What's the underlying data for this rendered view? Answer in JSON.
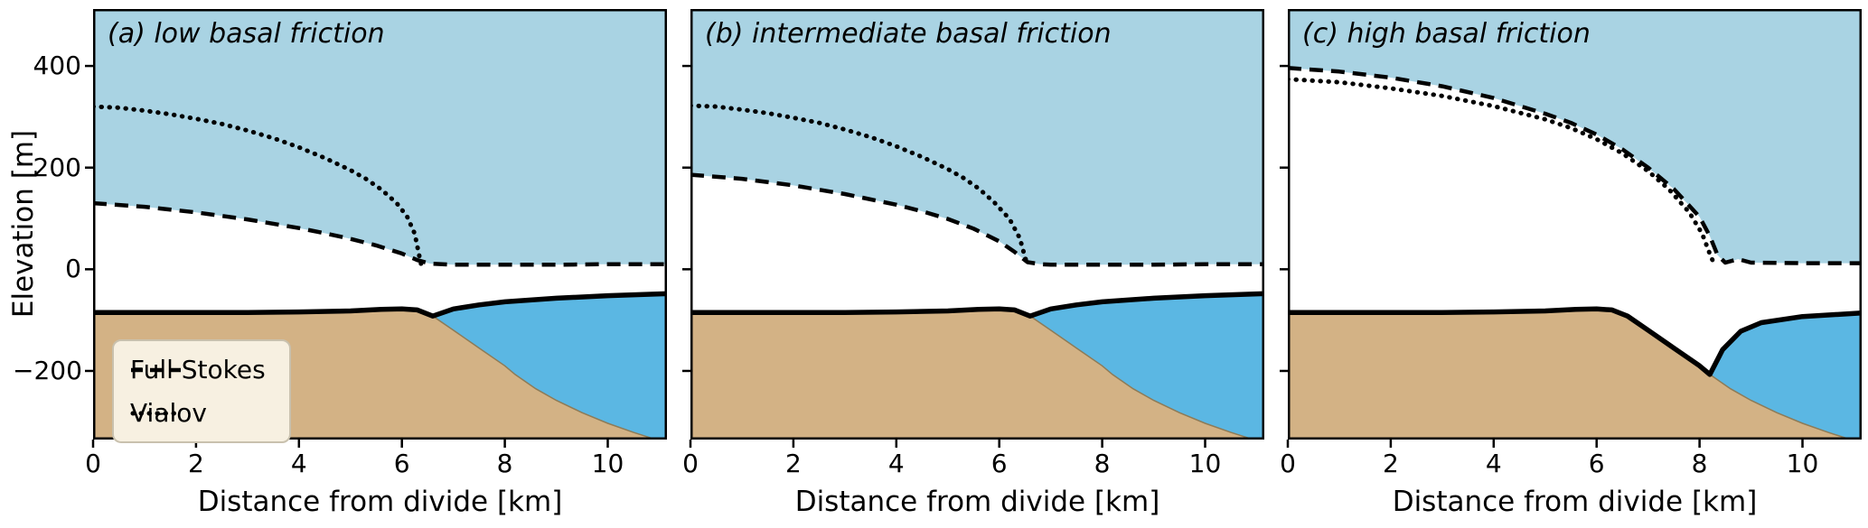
{
  "figure": {
    "ylabel": "Elevation [m]",
    "xlabel": "Distance from divide [km]",
    "x_ticks": [
      "0",
      "2",
      "4",
      "6",
      "8",
      "10"
    ],
    "x_tick_values": [
      0,
      2,
      4,
      6,
      8,
      10
    ],
    "y_ticks": [
      "400",
      "200",
      "0",
      "−200"
    ],
    "y_tick_values": [
      400,
      200,
      0,
      -200
    ],
    "colors": {
      "sky": "#a9d3e3",
      "water": "#5bb7e3",
      "bedrock": "#d3b285",
      "ice": "#ffffff",
      "line": "#000000",
      "legend_bg": "#f7f0e1"
    },
    "legend": {
      "position": "lower left of panel a",
      "entries": [
        {
          "label": "Full Stokes",
          "style": "dashed"
        },
        {
          "label": "Vialov",
          "style": "dotted"
        }
      ]
    }
  },
  "chart_data": [
    {
      "type": "area",
      "panel": "a",
      "title": "(a) low basal friction",
      "xlabel": "Distance from divide [km]",
      "ylabel": "Elevation [m]",
      "xlim": [
        0,
        11.15
      ],
      "ylim": [
        -335,
        512
      ],
      "grid": false,
      "grounding_line_x": 6.6,
      "series": [
        {
          "name": "Full Stokes surface",
          "style": "dashed",
          "points": [
            [
              0,
              130
            ],
            [
              1,
              123
            ],
            [
              2,
              112
            ],
            [
              3,
              98
            ],
            [
              4,
              81
            ],
            [
              4.5,
              71
            ],
            [
              5,
              60
            ],
            [
              5.5,
              47
            ],
            [
              6,
              31
            ],
            [
              6.3,
              18
            ],
            [
              6.55,
              11
            ],
            [
              7,
              9
            ],
            [
              8,
              9
            ],
            [
              9,
              9
            ],
            [
              10,
              10
            ],
            [
              11.15,
              10
            ]
          ]
        },
        {
          "name": "Vialov surface",
          "style": "dotted",
          "points": [
            [
              0,
              320
            ],
            [
              0.5,
              318
            ],
            [
              1,
              312
            ],
            [
              1.5,
              305
            ],
            [
              2,
              296
            ],
            [
              2.5,
              286
            ],
            [
              3,
              273
            ],
            [
              3.5,
              258
            ],
            [
              4,
              240
            ],
            [
              4.5,
              219
            ],
            [
              5,
              195
            ],
            [
              5.3,
              178
            ],
            [
              5.6,
              157
            ],
            [
              5.9,
              130
            ],
            [
              6.1,
              104
            ],
            [
              6.25,
              70
            ],
            [
              6.33,
              30
            ],
            [
              6.37,
              11
            ]
          ]
        },
        {
          "name": "Ice base",
          "style": "solid",
          "points": [
            [
              0,
              -85
            ],
            [
              1,
              -85
            ],
            [
              2,
              -85
            ],
            [
              3,
              -85
            ],
            [
              4,
              -84
            ],
            [
              5,
              -82
            ],
            [
              5.6,
              -79
            ],
            [
              6,
              -78
            ],
            [
              6.3,
              -80
            ],
            [
              6.6,
              -92
            ],
            [
              7,
              -78
            ],
            [
              7.5,
              -70
            ],
            [
              8,
              -64
            ],
            [
              9,
              -57
            ],
            [
              10,
              -52
            ],
            [
              11.15,
              -48
            ]
          ]
        },
        {
          "name": "Bedrock",
          "style": "fill-boundary",
          "points": [
            [
              0,
              -85
            ],
            [
              1,
              -85
            ],
            [
              2,
              -85
            ],
            [
              3,
              -85
            ],
            [
              4,
              -84
            ],
            [
              5,
              -82
            ],
            [
              5.6,
              -79
            ],
            [
              6,
              -78
            ],
            [
              6.3,
              -80
            ],
            [
              6.6,
              -92
            ],
            [
              7,
              -120
            ],
            [
              7.5,
              -155
            ],
            [
              8,
              -190
            ],
            [
              8.2,
              -207
            ],
            [
              8.6,
              -235
            ],
            [
              9,
              -258
            ],
            [
              9.5,
              -282
            ],
            [
              10,
              -303
            ],
            [
              10.5,
              -321
            ],
            [
              11.15,
              -342
            ]
          ]
        }
      ]
    },
    {
      "type": "area",
      "panel": "b",
      "title": "(b) intermediate basal friction",
      "xlabel": "Distance from divide [km]",
      "ylabel": "Elevation [m]",
      "xlim": [
        0,
        11.15
      ],
      "ylim": [
        -335,
        512
      ],
      "grid": false,
      "grounding_line_x": 6.6,
      "series": [
        {
          "name": "Full Stokes surface",
          "style": "dashed",
          "points": [
            [
              0,
              186
            ],
            [
              1,
              178
            ],
            [
              2,
              165
            ],
            [
              3,
              148
            ],
            [
              4,
              127
            ],
            [
              4.5,
              114
            ],
            [
              5,
              99
            ],
            [
              5.5,
              80
            ],
            [
              6,
              55
            ],
            [
              6.3,
              34
            ],
            [
              6.55,
              14
            ],
            [
              6.8,
              10
            ],
            [
              7,
              9
            ],
            [
              8,
              9
            ],
            [
              9,
              9
            ],
            [
              10,
              10
            ],
            [
              11.15,
              10
            ]
          ]
        },
        {
          "name": "Vialov surface",
          "style": "dotted",
          "points": [
            [
              0,
              322
            ],
            [
              0.5,
              320
            ],
            [
              1,
              314
            ],
            [
              1.5,
              307
            ],
            [
              2,
              298
            ],
            [
              2.5,
              288
            ],
            [
              3,
              275
            ],
            [
              3.5,
              260
            ],
            [
              4,
              242
            ],
            [
              4.5,
              221
            ],
            [
              5,
              197
            ],
            [
              5.3,
              180
            ],
            [
              5.6,
              159
            ],
            [
              5.9,
              132
            ],
            [
              6.2,
              99
            ],
            [
              6.4,
              61
            ],
            [
              6.5,
              24
            ],
            [
              6.54,
              11
            ]
          ]
        },
        {
          "name": "Ice base",
          "style": "solid",
          "points": [
            [
              0,
              -85
            ],
            [
              1,
              -85
            ],
            [
              2,
              -85
            ],
            [
              3,
              -85
            ],
            [
              4,
              -84
            ],
            [
              5,
              -82
            ],
            [
              5.6,
              -79
            ],
            [
              6,
              -78
            ],
            [
              6.3,
              -80
            ],
            [
              6.6,
              -92
            ],
            [
              7,
              -78
            ],
            [
              7.5,
              -70
            ],
            [
              8,
              -64
            ],
            [
              9,
              -57
            ],
            [
              10,
              -52
            ],
            [
              11.15,
              -48
            ]
          ]
        },
        {
          "name": "Bedrock",
          "style": "fill-boundary",
          "points": [
            [
              0,
              -85
            ],
            [
              1,
              -85
            ],
            [
              2,
              -85
            ],
            [
              3,
              -85
            ],
            [
              4,
              -84
            ],
            [
              5,
              -82
            ],
            [
              5.6,
              -79
            ],
            [
              6,
              -78
            ],
            [
              6.3,
              -80
            ],
            [
              6.6,
              -92
            ],
            [
              7,
              -120
            ],
            [
              7.5,
              -155
            ],
            [
              8,
              -190
            ],
            [
              8.2,
              -207
            ],
            [
              8.6,
              -235
            ],
            [
              9,
              -258
            ],
            [
              9.5,
              -282
            ],
            [
              10,
              -303
            ],
            [
              10.5,
              -321
            ],
            [
              11.15,
              -342
            ]
          ]
        }
      ]
    },
    {
      "type": "area",
      "panel": "c",
      "title": "(c) high basal friction",
      "xlabel": "Distance from divide [km]",
      "ylabel": "Elevation [m]",
      "xlim": [
        0,
        11.15
      ],
      "ylim": [
        -335,
        512
      ],
      "grid": false,
      "grounding_line_x": 8.2,
      "series": [
        {
          "name": "Full Stokes surface",
          "style": "dashed",
          "points": [
            [
              0,
              396
            ],
            [
              1,
              389
            ],
            [
              2,
              377
            ],
            [
              3,
              360
            ],
            [
              4,
              337
            ],
            [
              5,
              306
            ],
            [
              5.5,
              288
            ],
            [
              6,
              265
            ],
            [
              6.5,
              236
            ],
            [
              7,
              200
            ],
            [
              7.5,
              158
            ],
            [
              8,
              103
            ],
            [
              8.2,
              65
            ],
            [
              8.35,
              28
            ],
            [
              8.5,
              13
            ],
            [
              8.75,
              20
            ],
            [
              9,
              13
            ],
            [
              10,
              12
            ],
            [
              11.15,
              12
            ]
          ]
        },
        {
          "name": "Vialov surface",
          "style": "dotted",
          "points": [
            [
              0,
              374
            ],
            [
              1,
              368
            ],
            [
              2,
              356
            ],
            [
              3,
              341
            ],
            [
              4,
              321
            ],
            [
              5,
              295
            ],
            [
              5.5,
              278
            ],
            [
              6,
              256
            ],
            [
              6.5,
              228
            ],
            [
              7,
              193
            ],
            [
              7.4,
              158
            ],
            [
              7.8,
              112
            ],
            [
              8.05,
              70
            ],
            [
              8.2,
              30
            ],
            [
              8.28,
              11
            ]
          ]
        },
        {
          "name": "Ice base",
          "style": "solid",
          "points": [
            [
              0,
              -85
            ],
            [
              1,
              -85
            ],
            [
              2,
              -85
            ],
            [
              3,
              -85
            ],
            [
              4,
              -84
            ],
            [
              5,
              -82
            ],
            [
              5.6,
              -79
            ],
            [
              6,
              -78
            ],
            [
              6.3,
              -80
            ],
            [
              6.6,
              -92
            ],
            [
              7,
              -120
            ],
            [
              7.5,
              -155
            ],
            [
              8,
              -190
            ],
            [
              8.2,
              -207
            ],
            [
              8.45,
              -158
            ],
            [
              8.8,
              -122
            ],
            [
              9.2,
              -105
            ],
            [
              10,
              -93
            ],
            [
              11.15,
              -86
            ]
          ]
        },
        {
          "name": "Bedrock",
          "style": "fill-boundary",
          "points": [
            [
              0,
              -85
            ],
            [
              1,
              -85
            ],
            [
              2,
              -85
            ],
            [
              3,
              -85
            ],
            [
              4,
              -84
            ],
            [
              5,
              -82
            ],
            [
              5.6,
              -79
            ],
            [
              6,
              -78
            ],
            [
              6.3,
              -80
            ],
            [
              6.6,
              -92
            ],
            [
              7,
              -120
            ],
            [
              7.5,
              -155
            ],
            [
              8,
              -190
            ],
            [
              8.2,
              -207
            ],
            [
              8.6,
              -235
            ],
            [
              9,
              -258
            ],
            [
              9.5,
              -282
            ],
            [
              10,
              -303
            ],
            [
              10.5,
              -321
            ],
            [
              11.15,
              -342
            ]
          ]
        }
      ]
    }
  ]
}
